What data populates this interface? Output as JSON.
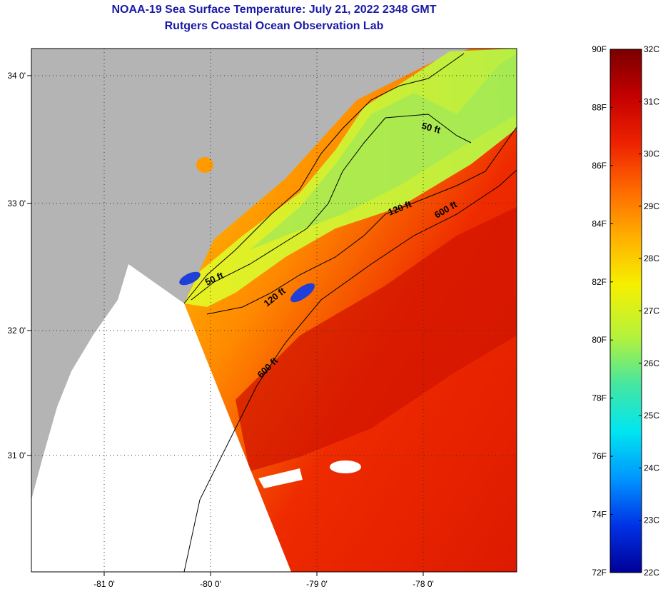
{
  "header": {
    "title": "NOAA-19 Sea Surface Temperature:  July 21, 2022 2348 GMT",
    "subtitle": "Rutgers Coastal Ocean Observation Lab"
  },
  "map": {
    "lat_labels": [
      "34 0'",
      "33 0'",
      "32 0'",
      "31 0'"
    ],
    "lon_labels": [
      "-81 0'",
      "-80 0'",
      "-79 0'",
      "-78 0'"
    ],
    "contours": [
      "50 ft",
      "50 ft",
      "120 ft",
      "120 ft",
      "600 ft",
      "600 ft"
    ],
    "colors": {
      "land": "#b4b4b4",
      "no_data": "#ffffff",
      "clouds": "#ffffff"
    }
  },
  "colorbar": {
    "fahrenheit_labels": [
      "90F",
      "88F",
      "86F",
      "84F",
      "82F",
      "80F",
      "78F",
      "76F",
      "74F",
      "72F"
    ],
    "celsius_labels": [
      "32C",
      "31C",
      "30C",
      "29C",
      "28C",
      "27C",
      "26C",
      "25C",
      "24C",
      "23C",
      "22C"
    ],
    "range_celsius": [
      22,
      32
    ],
    "range_fahrenheit": [
      72,
      90
    ],
    "gradient_colors_top_to_bottom": [
      "#7a0000",
      "#c40000",
      "#ee2200",
      "#ff6a00",
      "#ffb000",
      "#f6f000",
      "#b4f23c",
      "#46e6a0",
      "#00e6f0",
      "#0096ff",
      "#0032e6",
      "#000096"
    ]
  }
}
